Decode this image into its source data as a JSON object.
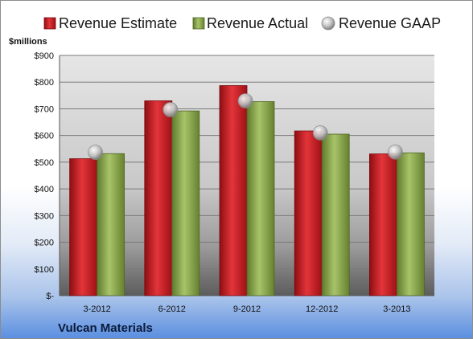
{
  "colors": {
    "estimate": "#c8161d",
    "actual": "#8aa94a",
    "gaap": "#b8b8b8"
  },
  "company": "Vulcan Materials",
  "chart_data": {
    "type": "bar",
    "title": "",
    "ylabel": "$millions",
    "xlabel": "",
    "ylim": [
      0,
      900
    ],
    "yticks": [
      0,
      100,
      200,
      300,
      400,
      500,
      600,
      700,
      800,
      900
    ],
    "ytick_labels": [
      "$-",
      "$100",
      "$200",
      "$300",
      "$400",
      "$500",
      "$600",
      "$700",
      "$800",
      "$900"
    ],
    "categories": [
      "3-2012",
      "6-2012",
      "9-2012",
      "12-2012",
      "3-2013"
    ],
    "series": [
      {
        "name": "Revenue Estimate",
        "kind": "bar",
        "values": [
          513,
          730,
          787,
          617,
          531
        ]
      },
      {
        "name": "Revenue Actual",
        "kind": "bar",
        "values": [
          532,
          692,
          727,
          605,
          535
        ]
      },
      {
        "name": "Revenue GAAP",
        "kind": "marker",
        "values": [
          537,
          697,
          730,
          610,
          538
        ]
      }
    ],
    "grid": true,
    "legend": "top"
  }
}
